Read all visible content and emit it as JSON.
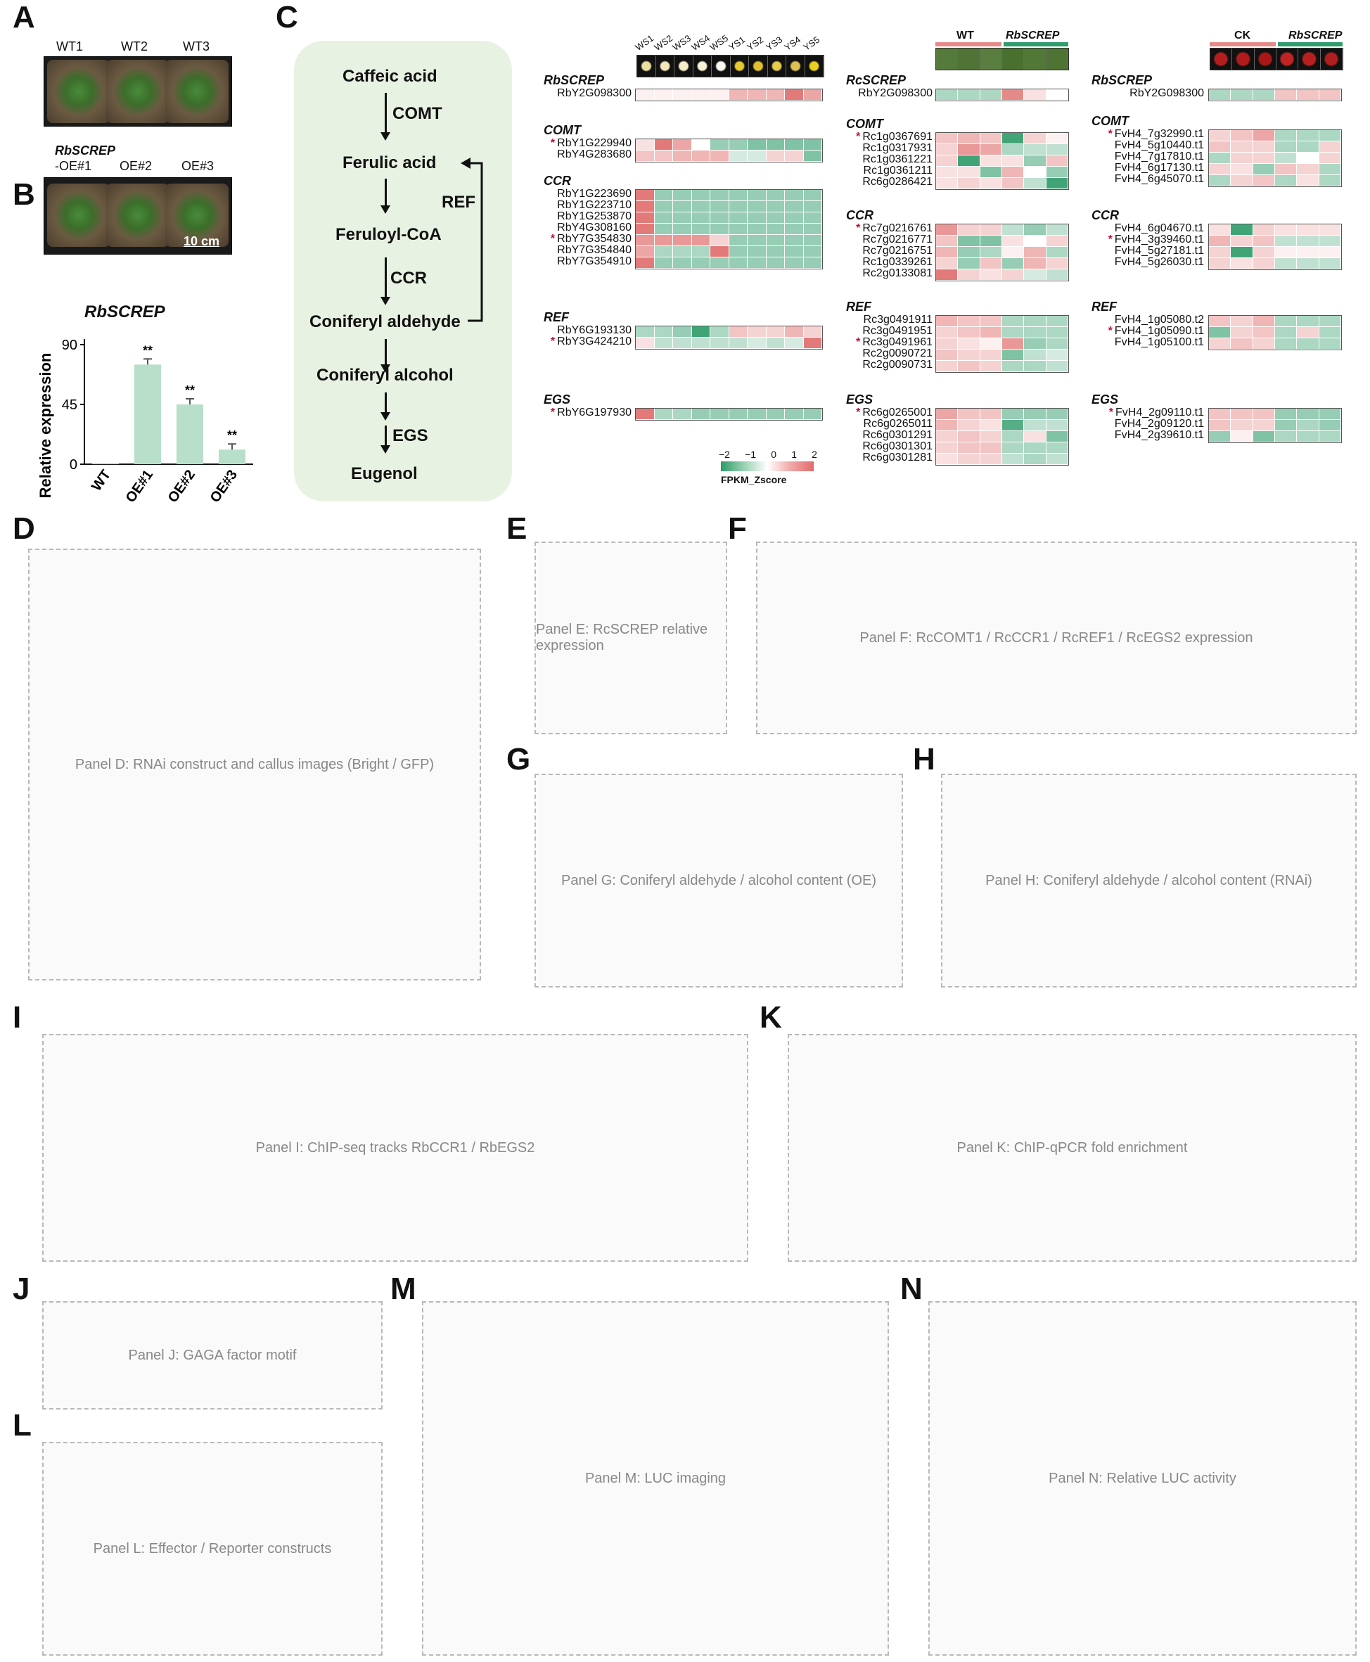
{
  "panels": {
    "A": "A",
    "B": "B",
    "C": "C",
    "D": "D",
    "E": "E",
    "F": "F",
    "G": "G",
    "H": "H",
    "I": "I",
    "J": "J",
    "K": "K",
    "L": "L",
    "M": "M",
    "N": "N"
  },
  "panel_a": {
    "top_labels": [
      "WT1",
      "WT2",
      "WT3"
    ],
    "bottom_prefix": "RbSCREP",
    "bottom_labels": [
      "-OE#1",
      "OE#2",
      "OE#3"
    ],
    "scale": "10 cm"
  },
  "panel_b": {
    "title": "RbSCREP",
    "ylabel": "Relative expression",
    "yticks": [
      "90",
      "45",
      "0"
    ],
    "categories": [
      "WT",
      "OE#1",
      "OE#2",
      "OE#3"
    ],
    "values": [
      0.5,
      75,
      45,
      11
    ],
    "sig": [
      "",
      "**",
      "**",
      "**"
    ],
    "ymax": 90
  },
  "panel_c": {
    "pathway": {
      "compounds": [
        "Caffeic acid",
        "Ferulic acid",
        "Feruloyl-CoA",
        "Coniferyl aldehyde",
        "Coniferyl alcohol",
        "Eugenol"
      ],
      "enzymes": [
        "COMT",
        "CCR",
        "EGS"
      ],
      "feedback": "REF"
    },
    "legend": {
      "ticks": [
        "−2",
        "−1",
        "0",
        "1",
        "2"
      ],
      "label": "FPKM_Zscore"
    },
    "col1": {
      "samples": [
        "WS1",
        "WS2",
        "WS3",
        "WS4",
        "WS5",
        "YS1",
        "YS2",
        "YS3",
        "YS4",
        "YS5"
      ],
      "groups": [
        {
          "title": "RbSCREP",
          "genes": [
            {
              "id": "RbY2G098300",
              "star": false
            }
          ],
          "values": [
            [
              0.1,
              0.1,
              0.1,
              0.1,
              0.1,
              0.5,
              0.5,
              0.5,
              0.9,
              0.6
            ]
          ]
        },
        {
          "title": "COMT",
          "genes": [
            {
              "id": "RbY1G229940",
              "star": true
            },
            {
              "id": "RbY4G283680",
              "star": false
            }
          ],
          "values": [
            [
              0.2,
              0.9,
              0.6,
              0.0,
              -0.5,
              -0.5,
              -0.6,
              -0.6,
              -0.6,
              -0.6
            ],
            [
              0.4,
              0.4,
              0.5,
              0.5,
              0.5,
              -0.2,
              -0.2,
              0.3,
              0.3,
              -0.6
            ]
          ]
        },
        {
          "title": "CCR",
          "genes": [
            {
              "id": "RbY1G223690",
              "star": false
            },
            {
              "id": "RbY1G223710",
              "star": false
            },
            {
              "id": "RbY1G253870",
              "star": false
            },
            {
              "id": "RbY4G308160",
              "star": false
            },
            {
              "id": "RbY7G354830",
              "star": true
            },
            {
              "id": "RbY7G354840",
              "star": false
            },
            {
              "id": "RbY7G354910",
              "star": false
            }
          ],
          "values": [
            [
              0.9,
              -0.5,
              -0.5,
              -0.5,
              -0.5,
              -0.5,
              -0.5,
              -0.5,
              -0.5,
              -0.5
            ],
            [
              0.9,
              -0.5,
              -0.5,
              -0.5,
              -0.5,
              -0.5,
              -0.5,
              -0.5,
              -0.5,
              -0.5
            ],
            [
              0.9,
              -0.5,
              -0.5,
              -0.5,
              -0.5,
              -0.5,
              -0.5,
              -0.5,
              -0.5,
              -0.5
            ],
            [
              0.9,
              -0.5,
              -0.5,
              -0.5,
              -0.5,
              -0.5,
              -0.5,
              -0.5,
              -0.5,
              -0.5
            ],
            [
              0.7,
              0.7,
              0.7,
              0.7,
              0.3,
              -0.5,
              -0.5,
              -0.5,
              -0.5,
              -0.5
            ],
            [
              0.6,
              -0.4,
              -0.4,
              -0.4,
              0.9,
              -0.5,
              -0.5,
              -0.5,
              -0.5,
              -0.5
            ],
            [
              0.9,
              -0.5,
              -0.5,
              -0.5,
              -0.5,
              -0.5,
              -0.5,
              -0.5,
              -0.5,
              -0.5
            ]
          ]
        },
        {
          "title": "REF",
          "genes": [
            {
              "id": "RbY6G193130",
              "star": false
            },
            {
              "id": "RbY3G424210",
              "star": true
            }
          ],
          "values": [
            [
              -0.4,
              -0.4,
              -0.5,
              -0.9,
              -0.4,
              0.4,
              0.3,
              0.3,
              0.5,
              0.3
            ],
            [
              0.2,
              -0.3,
              -0.3,
              -0.3,
              -0.3,
              -0.3,
              -0.2,
              -0.3,
              -0.2,
              0.9
            ]
          ]
        },
        {
          "title": "EGS",
          "genes": [
            {
              "id": "RbY6G197930",
              "star": true
            }
          ],
          "values": [
            [
              0.9,
              -0.4,
              -0.4,
              -0.5,
              -0.5,
              -0.5,
              -0.5,
              -0.5,
              -0.5,
              -0.5
            ]
          ]
        }
      ]
    },
    "col2": {
      "header": [
        "WT",
        "RbSCREP"
      ],
      "groups": [
        {
          "title": "RcSCREP",
          "genes": [
            {
              "id": "RbY2G098300",
              "star": false
            }
          ],
          "values": [
            [
              -0.4,
              -0.4,
              -0.4,
              0.8,
              0.2,
              0.0
            ]
          ]
        },
        {
          "title": "COMT",
          "genes": [
            {
              "id": "Rc1g0367691",
              "star": true
            },
            {
              "id": "Rc1g0317931",
              "star": false
            },
            {
              "id": "Rc1g0361221",
              "star": false
            },
            {
              "id": "Rc1g0361211",
              "star": false
            },
            {
              "id": "Rc6g0286421",
              "star": false
            }
          ],
          "values": [
            [
              0.4,
              0.5,
              0.4,
              -0.9,
              0.3,
              0.1
            ],
            [
              0.3,
              0.7,
              0.6,
              -0.4,
              -0.3,
              -0.3
            ],
            [
              0.3,
              -0.9,
              0.2,
              0.2,
              -0.5,
              0.4
            ],
            [
              0.2,
              0.2,
              -0.6,
              0.5,
              0.0,
              -0.5
            ],
            [
              0.2,
              0.3,
              0.2,
              0.4,
              -0.3,
              -0.9
            ]
          ]
        },
        {
          "title": "CCR",
          "genes": [
            {
              "id": "Rc7g0216761",
              "star": true
            },
            {
              "id": "Rc7g0216771",
              "star": false
            },
            {
              "id": "Rc7g0216751",
              "star": false
            },
            {
              "id": "Rc1g0339261",
              "star": false
            },
            {
              "id": "Rc2g0133081",
              "star": false
            }
          ],
          "values": [
            [
              0.7,
              0.3,
              0.3,
              -0.3,
              -0.5,
              -0.3
            ],
            [
              0.4,
              -0.6,
              -0.6,
              0.2,
              0.0,
              0.3
            ],
            [
              0.5,
              -0.5,
              -0.4,
              0.1,
              0.5,
              -0.4
            ],
            [
              0.3,
              -0.5,
              0.4,
              -0.5,
              0.5,
              0.3
            ],
            [
              0.9,
              0.3,
              0.2,
              0.3,
              -0.2,
              -0.3
            ]
          ]
        },
        {
          "title": "REF",
          "genes": [
            {
              "id": "Rc3g0491911",
              "star": false
            },
            {
              "id": "Rc3g0491951",
              "star": false
            },
            {
              "id": "Rc3g0491961",
              "star": true
            },
            {
              "id": "Rc2g0090721",
              "star": false
            },
            {
              "id": "Rc2g0090731",
              "star": false
            }
          ],
          "values": [
            [
              0.5,
              0.4,
              0.4,
              -0.4,
              -0.4,
              -0.4
            ],
            [
              0.3,
              0.4,
              0.5,
              -0.4,
              -0.4,
              -0.4
            ],
            [
              0.3,
              0.2,
              0.1,
              0.7,
              -0.5,
              -0.4
            ],
            [
              0.4,
              0.3,
              0.3,
              -0.6,
              -0.3,
              -0.2
            ],
            [
              0.3,
              0.4,
              0.3,
              -0.4,
              -0.4,
              -0.3
            ]
          ]
        },
        {
          "title": "EGS",
          "genes": [
            {
              "id": "Rc6g0265001",
              "star": true
            },
            {
              "id": "Rc6g0265011",
              "star": false
            },
            {
              "id": "Rc6g0301291",
              "star": false
            },
            {
              "id": "Rc6g0301301",
              "star": false
            },
            {
              "id": "Rc6g0301281",
              "star": false
            }
          ],
          "values": [
            [
              0.6,
              0.4,
              0.4,
              -0.5,
              -0.5,
              -0.5
            ],
            [
              0.5,
              0.3,
              0.2,
              -0.8,
              -0.3,
              -0.3
            ],
            [
              0.3,
              0.4,
              0.3,
              -0.4,
              0.2,
              -0.6
            ],
            [
              0.3,
              0.4,
              0.4,
              -0.4,
              -0.4,
              -0.4
            ],
            [
              0.2,
              0.3,
              0.3,
              -0.3,
              -0.4,
              -0.3
            ]
          ]
        }
      ]
    },
    "col3": {
      "header": [
        "CK",
        "RbSCREP"
      ],
      "groups": [
        {
          "title": "RbSCREP",
          "genes": [
            {
              "id": "RbY2G098300",
              "star": false
            }
          ],
          "values": [
            [
              -0.4,
              -0.4,
              -0.4,
              0.4,
              0.4,
              0.4
            ]
          ]
        },
        {
          "title": "COMT",
          "genes": [
            {
              "id": "FvH4_7g32990.t1",
              "star": true
            },
            {
              "id": "FvH4_5g10440.t1",
              "star": false
            },
            {
              "id": "FvH4_7g17810.t1",
              "star": false
            },
            {
              "id": "FvH4_6g17130.t1",
              "star": false
            },
            {
              "id": "FvH4_6g45070.t1",
              "star": false
            }
          ],
          "values": [
            [
              0.3,
              0.4,
              0.6,
              -0.4,
              -0.4,
              -0.4
            ],
            [
              0.4,
              0.3,
              0.3,
              -0.4,
              -0.4,
              0.3
            ],
            [
              -0.4,
              0.3,
              0.3,
              -0.3,
              0.0,
              0.3
            ],
            [
              0.3,
              0.2,
              -0.5,
              0.4,
              0.3,
              -0.4
            ],
            [
              -0.4,
              0.3,
              0.4,
              -0.4,
              0.2,
              -0.4
            ]
          ]
        },
        {
          "title": "CCR",
          "genes": [
            {
              "id": "FvH4_6g04670.t1",
              "star": false
            },
            {
              "id": "FvH4_3g39460.t1",
              "star": true
            },
            {
              "id": "FvH4_5g27181.t1",
              "star": false
            },
            {
              "id": "FvH4_5g26030.t1",
              "star": false
            }
          ],
          "values": [
            [
              0.2,
              -0.9,
              0.3,
              0.2,
              0.2,
              0.2
            ],
            [
              0.5,
              0.3,
              0.4,
              -0.3,
              -0.3,
              -0.3
            ],
            [
              0.3,
              -0.9,
              0.3,
              0.1,
              0.1,
              0.1
            ],
            [
              0.3,
              0.2,
              0.3,
              -0.3,
              -0.3,
              -0.3
            ]
          ]
        },
        {
          "title": "REF",
          "genes": [
            {
              "id": "FvH4_1g05080.t2",
              "star": false
            },
            {
              "id": "FvH4_1g05090.t1",
              "star": true
            },
            {
              "id": "FvH4_1g05100.t1",
              "star": false
            }
          ],
          "values": [
            [
              0.4,
              0.3,
              0.5,
              -0.4,
              -0.4,
              -0.4
            ],
            [
              -0.6,
              0.3,
              0.4,
              -0.4,
              0.3,
              -0.4
            ],
            [
              0.3,
              0.4,
              0.3,
              -0.4,
              -0.4,
              -0.4
            ]
          ]
        },
        {
          "title": "EGS",
          "genes": [
            {
              "id": "FvH4_2g09110.t1",
              "star": true
            },
            {
              "id": "FvH4_2g09120.t1",
              "star": false
            },
            {
              "id": "FvH4_2g39610.t1",
              "star": false
            }
          ],
          "values": [
            [
              0.4,
              0.4,
              0.4,
              -0.5,
              -0.5,
              -0.5
            ],
            [
              0.4,
              0.3,
              0.3,
              -0.5,
              -0.4,
              -0.5
            ],
            [
              -0.5,
              0.1,
              -0.6,
              -0.4,
              -0.4,
              -0.4
            ]
          ]
        }
      ]
    }
  },
  "other_panels": {
    "D": "Panel D: RNAi construct and callus images (Bright / GFP)",
    "E": "Panel E: RcSCREP relative expression",
    "F": "Panel F: RcCOMT1 / RcCCR1 / RcREF1 / RcEGS2 expression",
    "G": "Panel G: Coniferyl aldehyde / alcohol content (OE)",
    "H": "Panel H: Coniferyl aldehyde / alcohol content (RNAi)",
    "I": "Panel I: ChIP-seq tracks RbCCR1 / RbEGS2",
    "J": "Panel J: GAGA factor motif",
    "K": "Panel K: ChIP-qPCR fold enrichment",
    "L": "Panel L: Effector / Reporter constructs",
    "M": "Panel M: LUC imaging",
    "N": "Panel N: Relative LUC activity"
  }
}
